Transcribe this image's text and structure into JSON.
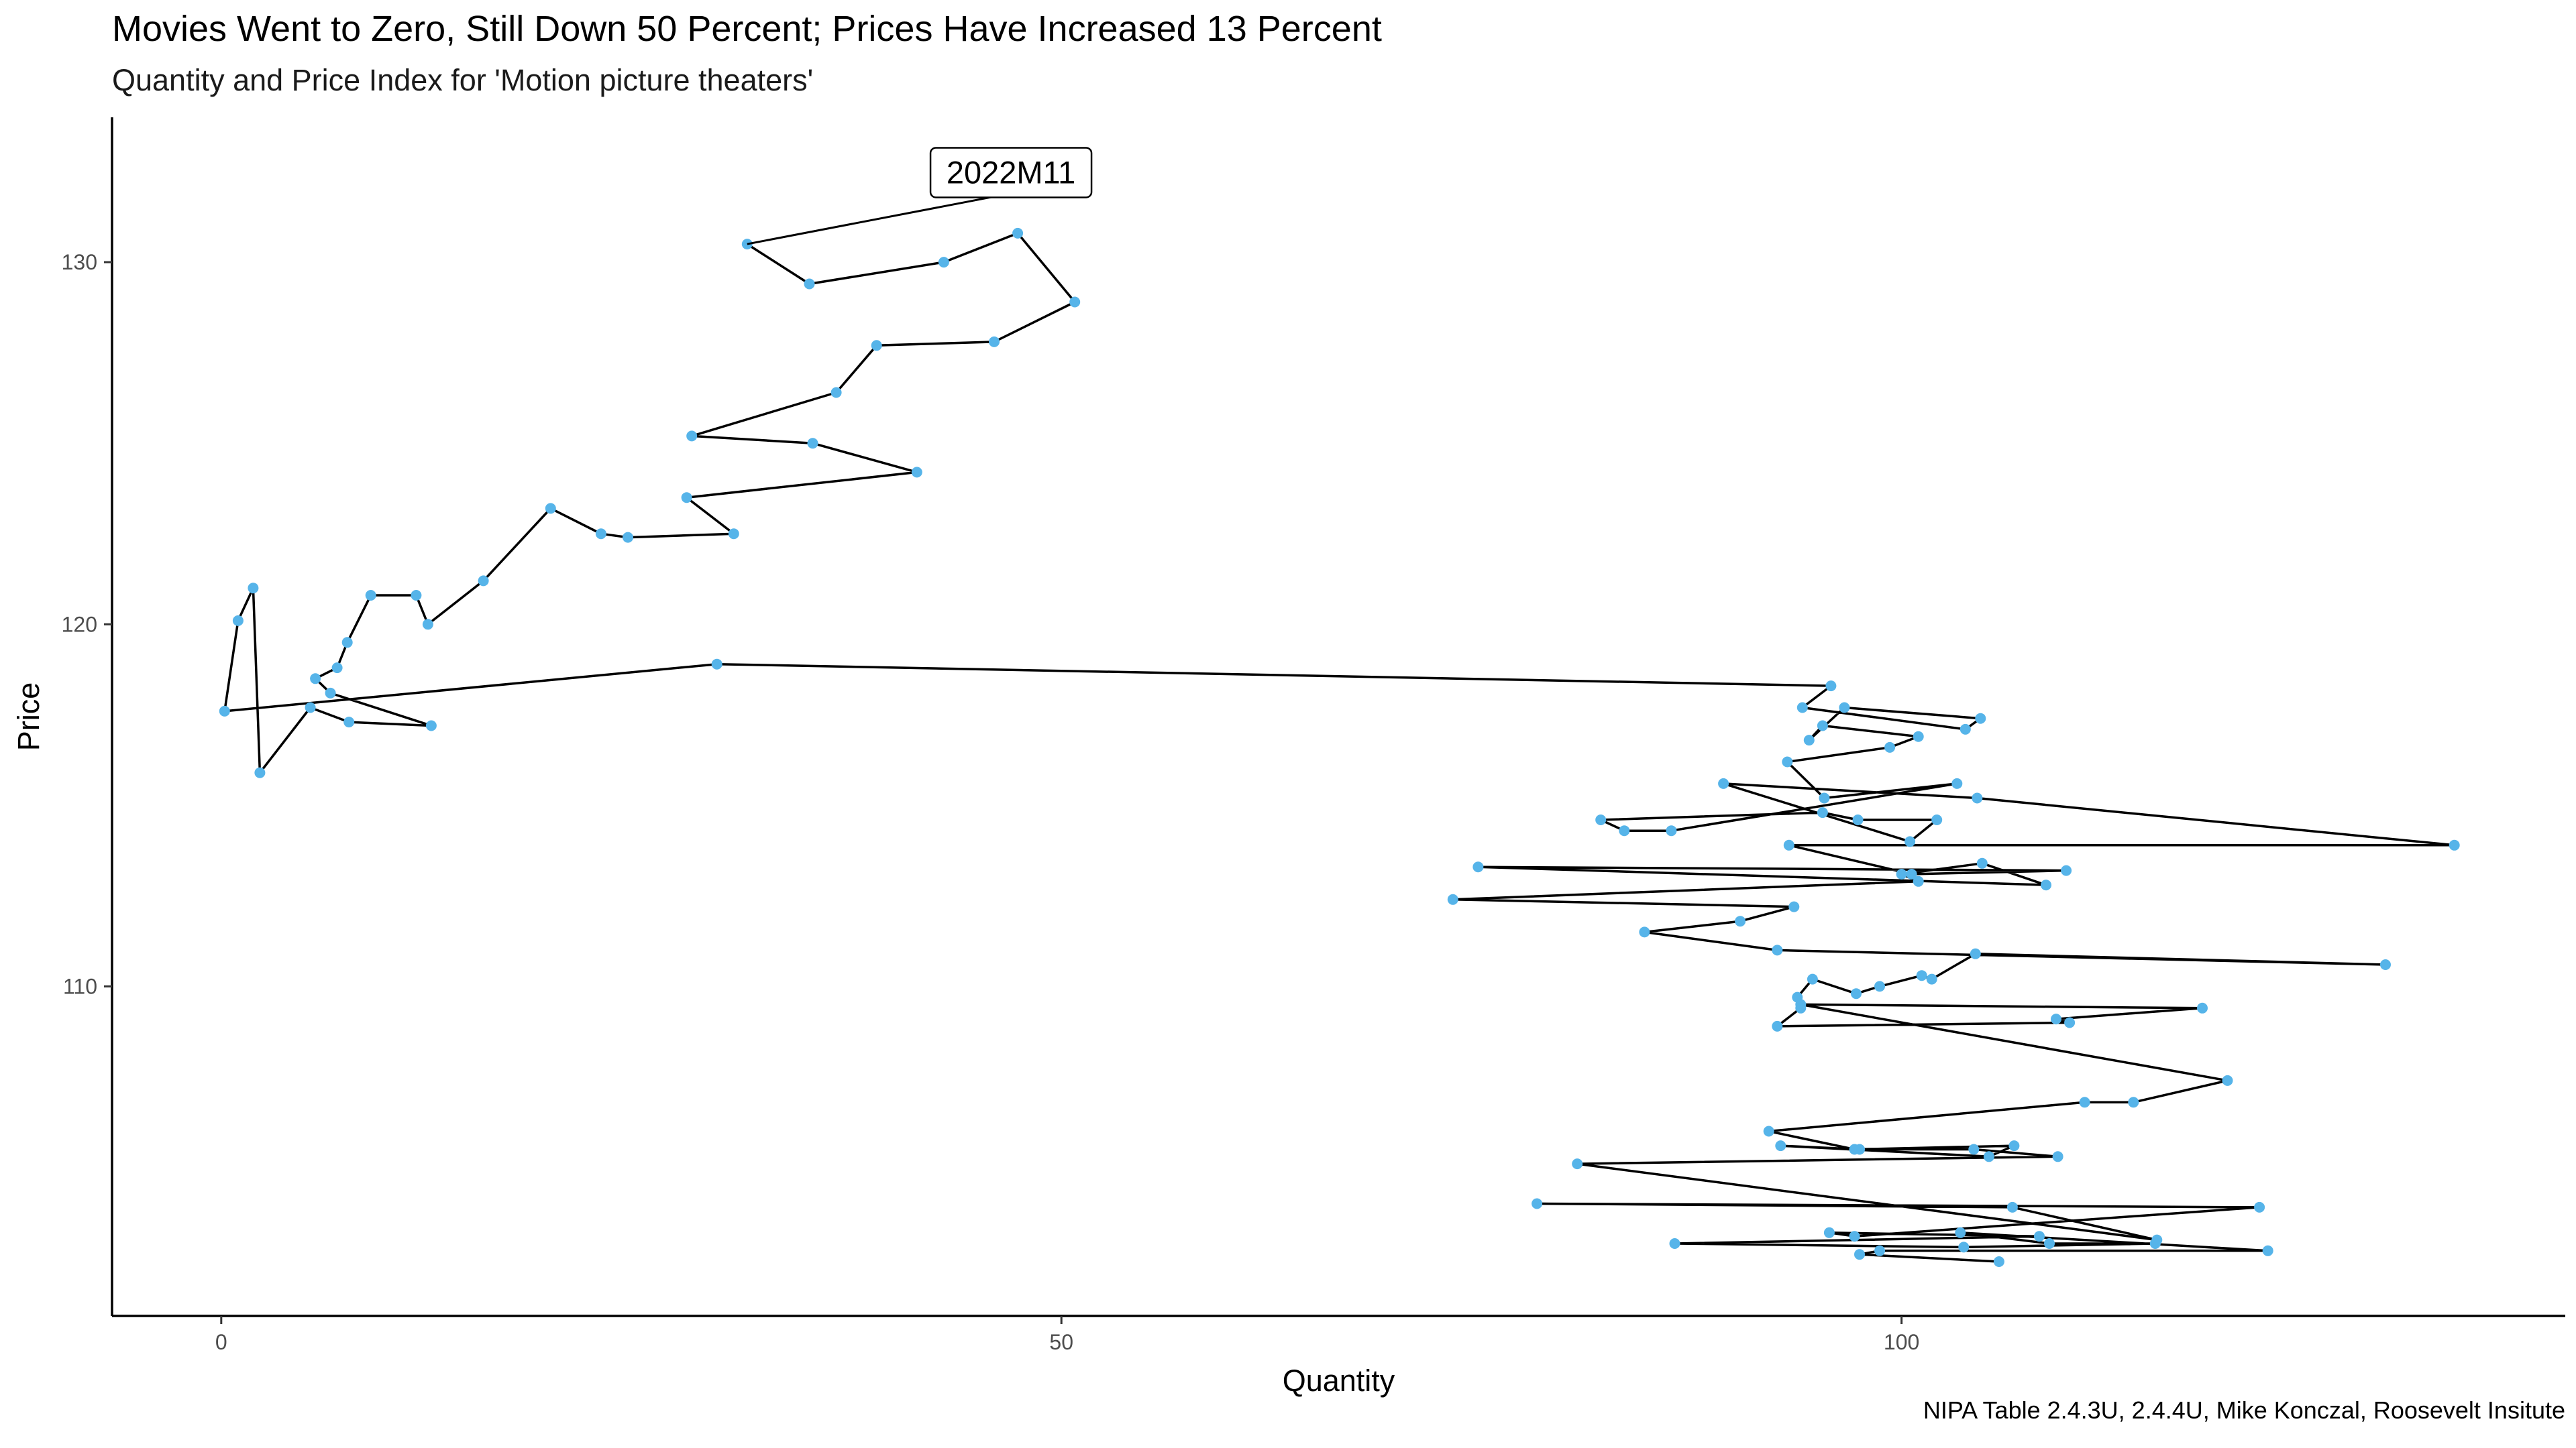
{
  "title": "Movies Went to Zero, Still Down 50 Percent; Prices Have Increased 13 Percent",
  "subtitle": "Quantity and Price Index for 'Motion picture theaters'",
  "caption": "NIPA Table 2.4.3U, 2.4.4U, Mike Konczal, Roosevelt Insitute",
  "chart_data": {
    "type": "scatter",
    "connected": true,
    "xlabel": "Quantity",
    "ylabel": "Price",
    "xlim": [
      -6.5,
      139.5
    ],
    "ylim": [
      100.9,
      134.0
    ],
    "xticks": [
      0,
      50,
      100
    ],
    "yticks": [
      110,
      120,
      130
    ],
    "grid": false,
    "point_color": "#56B4E9",
    "line_color": "#000000",
    "annotation": {
      "label": "2022M11",
      "x": 47.0,
      "y": 131.9
    },
    "points": [
      [
        105.8,
        102.4
      ],
      [
        97.5,
        102.6
      ],
      [
        98.7,
        102.7
      ],
      [
        121.8,
        102.7
      ],
      [
        103.5,
        103.2
      ],
      [
        108.8,
        102.9
      ],
      [
        115.1,
        102.9
      ],
      [
        103.7,
        102.8
      ],
      [
        86.5,
        102.9
      ],
      [
        108.2,
        103.1
      ],
      [
        95.7,
        103.2
      ],
      [
        97.2,
        103.1
      ],
      [
        121.3,
        103.9
      ],
      [
        78.3,
        104.0
      ],
      [
        106.6,
        103.9
      ],
      [
        115.2,
        103.0
      ],
      [
        80.7,
        105.1
      ],
      [
        109.3,
        105.3
      ],
      [
        104.3,
        105.5
      ],
      [
        97.5,
        105.5
      ],
      [
        92.8,
        105.6
      ],
      [
        105.2,
        105.3
      ],
      [
        106.7,
        105.6
      ],
      [
        97.2,
        105.5
      ],
      [
        92.1,
        106.0
      ],
      [
        110.9,
        106.8
      ],
      [
        113.8,
        106.8
      ],
      [
        119.4,
        107.4
      ],
      [
        94.0,
        109.5
      ],
      [
        117.9,
        109.4
      ],
      [
        109.2,
        109.1
      ],
      [
        110.0,
        109.0
      ],
      [
        92.6,
        108.9
      ],
      [
        94.0,
        109.4
      ],
      [
        93.8,
        109.7
      ],
      [
        94.7,
        110.2
      ],
      [
        97.3,
        109.8
      ],
      [
        98.7,
        110.0
      ],
      [
        101.2,
        110.3
      ],
      [
        101.8,
        110.2
      ],
      [
        104.4,
        110.9
      ],
      [
        128.8,
        110.6
      ],
      [
        92.6,
        111.0
      ],
      [
        84.7,
        111.5
      ],
      [
        90.4,
        111.8
      ],
      [
        93.6,
        112.2
      ],
      [
        73.3,
        112.4
      ],
      [
        101.0,
        112.9
      ],
      [
        100.0,
        113.1
      ],
      [
        104.8,
        113.4
      ],
      [
        108.6,
        112.8
      ],
      [
        74.8,
        113.3
      ],
      [
        109.8,
        113.2
      ],
      [
        100.6,
        113.1
      ],
      [
        93.3,
        113.9
      ],
      [
        132.9,
        113.9
      ],
      [
        104.5,
        115.2
      ],
      [
        89.4,
        115.6
      ],
      [
        100.5,
        114.0
      ],
      [
        102.1,
        114.6
      ],
      [
        97.4,
        114.6
      ],
      [
        95.3,
        114.8
      ],
      [
        82.1,
        114.6
      ],
      [
        83.5,
        114.3
      ],
      [
        86.3,
        114.3
      ],
      [
        103.3,
        115.6
      ],
      [
        95.4,
        115.2
      ],
      [
        93.2,
        116.2
      ],
      [
        99.3,
        116.6
      ],
      [
        101.0,
        116.9
      ],
      [
        95.3,
        117.2
      ],
      [
        94.5,
        116.8
      ],
      [
        96.6,
        117.7
      ],
      [
        104.7,
        117.4
      ],
      [
        103.8,
        117.1
      ],
      [
        94.1,
        117.7
      ],
      [
        95.8,
        118.3
      ],
      [
        29.5,
        118.9
      ],
      [
        0.2,
        117.6
      ],
      [
        1.0,
        120.1
      ],
      [
        1.9,
        121.0
      ],
      [
        2.3,
        115.9
      ],
      [
        5.3,
        117.7
      ],
      [
        7.6,
        117.3
      ],
      [
        12.5,
        117.2
      ],
      [
        6.5,
        118.1
      ],
      [
        5.6,
        118.5
      ],
      [
        6.9,
        118.8
      ],
      [
        7.5,
        119.5
      ],
      [
        8.9,
        120.8
      ],
      [
        11.6,
        120.8
      ],
      [
        12.3,
        120.0
      ],
      [
        15.6,
        121.2
      ],
      [
        19.6,
        123.2
      ],
      [
        22.6,
        122.5
      ],
      [
        24.2,
        122.4
      ],
      [
        30.5,
        122.5
      ],
      [
        27.7,
        123.5
      ],
      [
        41.4,
        124.2
      ],
      [
        35.2,
        125.0
      ],
      [
        28.0,
        125.2
      ],
      [
        36.6,
        126.4
      ],
      [
        39.0,
        127.7
      ],
      [
        46.0,
        127.8
      ],
      [
        50.8,
        128.9
      ],
      [
        47.4,
        130.8
      ],
      [
        43.0,
        130.0
      ],
      [
        35.0,
        129.4
      ],
      [
        31.3,
        130.5
      ]
    ]
  }
}
